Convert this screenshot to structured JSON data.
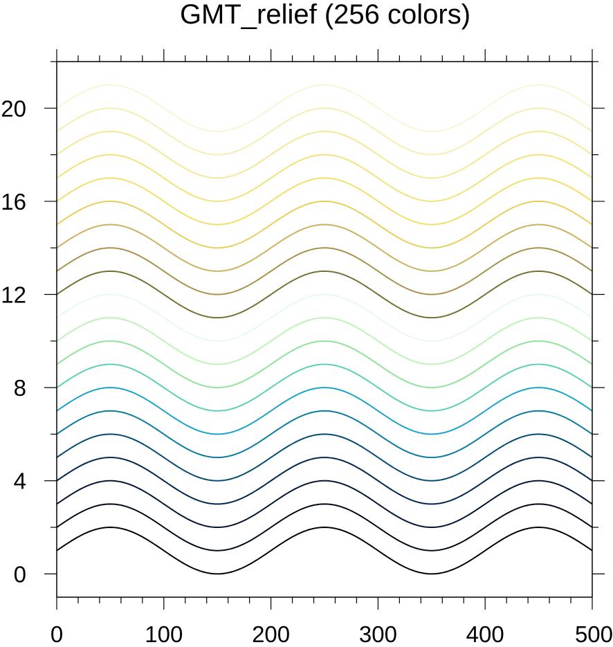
{
  "chart_data": {
    "type": "line",
    "title": "GMT_relief (256 colors)",
    "xlabel": "",
    "ylabel": "",
    "xlim": [
      0,
      500
    ],
    "ylim": [
      -1,
      22
    ],
    "grid": false,
    "legend": "none",
    "x_ticks": [
      0,
      100,
      200,
      300,
      400,
      500
    ],
    "x_tick_labels": [
      "0",
      "100",
      "200",
      "300",
      "400",
      "500"
    ],
    "y_ticks": [
      0,
      4,
      8,
      12,
      16,
      20
    ],
    "y_tick_labels": [
      "0",
      "4",
      "8",
      "12",
      "16",
      "20"
    ],
    "curve": {
      "amplitude": 1,
      "period": 200,
      "phase_peak_x": 50,
      "offset_above_index": 1
    },
    "series": [
      {
        "values_baseline": 1,
        "color": "#000000"
      },
      {
        "values_baseline": 2,
        "color": "#000a1a"
      },
      {
        "values_baseline": 3,
        "color": "#001633"
      },
      {
        "values_baseline": 4,
        "color": "#00264d"
      },
      {
        "values_baseline": 5,
        "color": "#034a73"
      },
      {
        "values_baseline": 6,
        "color": "#0a7aa0"
      },
      {
        "values_baseline": 7,
        "color": "#1aa3c8"
      },
      {
        "values_baseline": 8,
        "color": "#5ccfb6"
      },
      {
        "values_baseline": 9,
        "color": "#8fe39c"
      },
      {
        "values_baseline": 10,
        "color": "#bdf3b6"
      },
      {
        "values_baseline": 11,
        "color": "#e6fbee"
      },
      {
        "values_baseline": 12,
        "color": "#757135"
      },
      {
        "values_baseline": 13,
        "color": "#a8924d"
      },
      {
        "values_baseline": 14,
        "color": "#ccb25e"
      },
      {
        "values_baseline": 15,
        "color": "#e8cf5c"
      },
      {
        "values_baseline": 16,
        "color": "#f2df6a"
      },
      {
        "values_baseline": 17,
        "color": "#f3e27c"
      },
      {
        "values_baseline": 18,
        "color": "#f4e897"
      },
      {
        "values_baseline": 19,
        "color": "#f5eeb3"
      },
      {
        "values_baseline": 20,
        "color": "#faf5d4"
      }
    ]
  }
}
